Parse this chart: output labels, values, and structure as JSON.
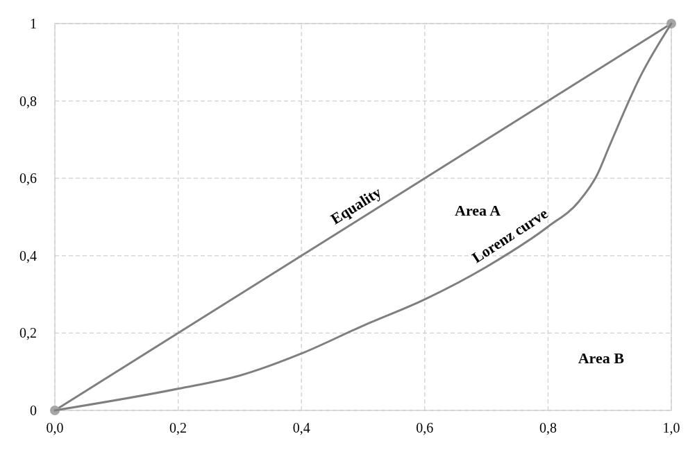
{
  "chart_data": {
    "type": "line",
    "xlim": [
      0,
      1
    ],
    "ylim": [
      0,
      1
    ],
    "xticks": [
      {
        "value": 0,
        "label": "0,0"
      },
      {
        "value": 0.2,
        "label": "0,2"
      },
      {
        "value": 0.4,
        "label": "0,4"
      },
      {
        "value": 0.6,
        "label": "0,6"
      },
      {
        "value": 0.8,
        "label": "0,8"
      },
      {
        "value": 1,
        "label": "1,0"
      }
    ],
    "yticks": [
      0,
      {
        "value": 0.2,
        "label": "0,2"
      },
      {
        "value": 0.4,
        "label": "0,4"
      },
      {
        "value": 0.6,
        "label": "0,6"
      },
      {
        "value": 0.8,
        "label": "0,8"
      },
      1
    ],
    "grid": true,
    "line_style": "solid",
    "series": [
      {
        "name": "Equality",
        "color": "#7f7f7f",
        "marker": "circle",
        "x": [
          0,
          1
        ],
        "values": [
          0,
          1
        ]
      },
      {
        "name": "Lorenz curve",
        "color": "#7f7f7f",
        "marker": "none",
        "x": [
          0,
          0.2,
          0.3,
          0.4,
          0.5,
          0.6,
          0.7,
          0.8,
          0.85,
          0.88,
          0.9,
          0.95,
          1
        ],
        "values": [
          0,
          0.056,
          0.09,
          0.147,
          0.219,
          0.287,
          0.371,
          0.475,
          0.54,
          0.61,
          0.685,
          0.864,
          1
        ]
      }
    ],
    "annotations": [
      "Area A",
      "Area B"
    ]
  }
}
